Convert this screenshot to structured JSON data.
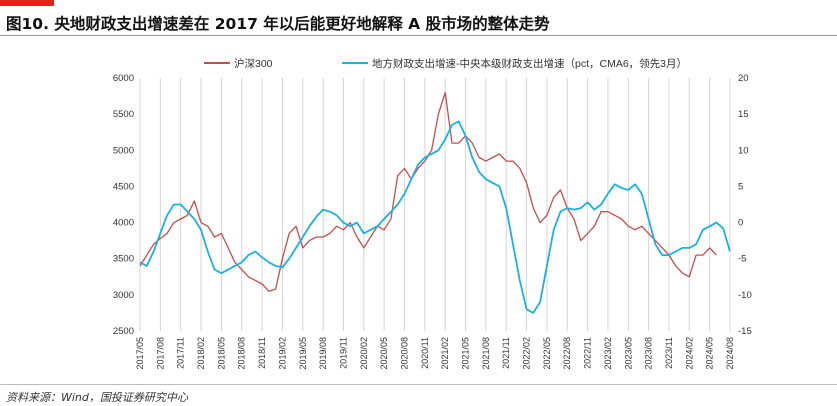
{
  "header": {
    "title": "图10. 央地财政支出增速差在 2017 年以后能更好地解释 A 股市场的整体走势"
  },
  "footer": {
    "source": "资料来源：Wind，国投证券研究中心"
  },
  "colors": {
    "accent": "#e2231a",
    "hs300": "#c0504d",
    "fiscal": "#1cb0e0"
  },
  "chart_data": {
    "type": "line",
    "legend_position": "top",
    "grid": {
      "vertical": true,
      "horizontal": false
    },
    "x_ticks": [
      "2017/05",
      "2017/08",
      "2017/11",
      "2018/02",
      "2018/05",
      "2018/08",
      "2018/11",
      "2019/02",
      "2019/05",
      "2019/08",
      "2019/11",
      "2020/02",
      "2020/05",
      "2020/08",
      "2020/11",
      "2021/02",
      "2021/05",
      "2021/08",
      "2021/11",
      "2022/02",
      "2022/05",
      "2022/08",
      "2022/11",
      "2023/02",
      "2023/05",
      "2023/08",
      "2023/11",
      "2024/02",
      "2024/05",
      "2024/08"
    ],
    "y_left": {
      "ticks": [
        2500,
        3000,
        3500,
        4000,
        4500,
        5000,
        5500,
        6000
      ],
      "range": [
        2500,
        6000
      ]
    },
    "y_right": {
      "ticks": [
        -15,
        -10,
        -5,
        0,
        5,
        10,
        15,
        20
      ],
      "range": [
        -15,
        20
      ]
    },
    "series": [
      {
        "name": "沪深300",
        "axis": "left",
        "x": [
          "2017/05",
          "2017/06",
          "2017/07",
          "2017/08",
          "2017/09",
          "2017/10",
          "2017/11",
          "2017/12",
          "2018/01",
          "2018/02",
          "2018/03",
          "2018/04",
          "2018/05",
          "2018/06",
          "2018/07",
          "2018/08",
          "2018/09",
          "2018/10",
          "2018/11",
          "2018/12",
          "2019/01",
          "2019/02",
          "2019/03",
          "2019/04",
          "2019/05",
          "2019/06",
          "2019/07",
          "2019/08",
          "2019/09",
          "2019/10",
          "2019/11",
          "2019/12",
          "2020/01",
          "2020/02",
          "2020/03",
          "2020/04",
          "2020/05",
          "2020/06",
          "2020/07",
          "2020/08",
          "2020/09",
          "2020/10",
          "2020/11",
          "2020/12",
          "2021/01",
          "2021/02",
          "2021/03",
          "2021/04",
          "2021/05",
          "2021/06",
          "2021/07",
          "2021/08",
          "2021/09",
          "2021/10",
          "2021/11",
          "2021/12",
          "2022/01",
          "2022/02",
          "2022/03",
          "2022/04",
          "2022/05",
          "2022/06",
          "2022/07",
          "2022/08",
          "2022/09",
          "2022/10",
          "2022/11",
          "2022/12",
          "2023/01",
          "2023/02",
          "2023/03",
          "2023/04",
          "2023/05",
          "2023/06",
          "2023/07",
          "2023/08",
          "2023/09",
          "2023/10",
          "2023/11",
          "2023/12",
          "2024/01",
          "2024/02",
          "2024/03",
          "2024/04",
          "2024/05",
          "2024/06"
        ],
        "values": [
          3400,
          3550,
          3700,
          3780,
          3850,
          4000,
          4050,
          4100,
          4300,
          4000,
          3950,
          3800,
          3850,
          3650,
          3450,
          3350,
          3250,
          3200,
          3150,
          3050,
          3080,
          3500,
          3850,
          3950,
          3650,
          3750,
          3800,
          3800,
          3850,
          3950,
          3900,
          4000,
          3800,
          3650,
          3800,
          3950,
          3900,
          4050,
          4650,
          4750,
          4600,
          4750,
          4850,
          5000,
          5500,
          5800,
          5100,
          5100,
          5200,
          5100,
          4900,
          4850,
          4900,
          4950,
          4850,
          4850,
          4750,
          4550,
          4200,
          4000,
          4100,
          4350,
          4450,
          4200,
          4050,
          3750,
          3850,
          3950,
          4150,
          4150,
          4100,
          4050,
          3950,
          3900,
          3950,
          3850,
          3750,
          3650,
          3550,
          3400,
          3300,
          3250,
          3550,
          3550,
          3650,
          3550
        ]
      },
      {
        "name": "地方财政支出增速-中央本级财政支出增速（pct，CMA6，领先3月）",
        "axis": "right",
        "x": [
          "2017/05",
          "2017/06",
          "2017/07",
          "2017/08",
          "2017/09",
          "2017/10",
          "2017/11",
          "2017/12",
          "2018/01",
          "2018/02",
          "2018/03",
          "2018/04",
          "2018/05",
          "2018/06",
          "2018/07",
          "2018/08",
          "2018/09",
          "2018/10",
          "2018/11",
          "2018/12",
          "2019/01",
          "2019/02",
          "2019/03",
          "2019/04",
          "2019/05",
          "2019/06",
          "2019/07",
          "2019/08",
          "2019/09",
          "2019/10",
          "2019/11",
          "2019/12",
          "2020/01",
          "2020/02",
          "2020/03",
          "2020/04",
          "2020/05",
          "2020/06",
          "2020/07",
          "2020/08",
          "2020/09",
          "2020/10",
          "2020/11",
          "2020/12",
          "2021/01",
          "2021/02",
          "2021/03",
          "2021/04",
          "2021/05",
          "2021/06",
          "2021/07",
          "2021/08",
          "2021/09",
          "2021/10",
          "2021/11",
          "2021/12",
          "2022/01",
          "2022/02",
          "2022/03",
          "2022/04",
          "2022/05",
          "2022/06",
          "2022/07",
          "2022/08",
          "2022/09",
          "2022/10",
          "2022/11",
          "2022/12",
          "2023/01",
          "2023/02",
          "2023/03",
          "2023/04",
          "2023/05",
          "2023/06",
          "2023/07",
          "2023/08",
          "2023/09",
          "2023/10",
          "2023/11",
          "2023/12",
          "2024/01",
          "2024/02",
          "2024/03",
          "2024/04",
          "2024/05",
          "2024/06",
          "2024/07",
          "2024/08"
        ],
        "values": [
          -5.5,
          -6.0,
          -4.0,
          -1.5,
          1.0,
          2.5,
          2.5,
          1.5,
          0.5,
          -1.0,
          -4.0,
          -6.5,
          -7.0,
          -6.5,
          -6.0,
          -5.5,
          -4.5,
          -4.0,
          -4.8,
          -5.5,
          -6.0,
          -6.2,
          -5.0,
          -3.5,
          -2.0,
          -0.5,
          0.8,
          1.8,
          1.5,
          1.0,
          0.0,
          -0.5,
          0.0,
          -1.5,
          -1.0,
          -0.5,
          0.5,
          1.5,
          2.5,
          4.0,
          6.0,
          8.0,
          9.0,
          9.5,
          10.0,
          11.5,
          13.5,
          14.0,
          12.0,
          9.0,
          7.0,
          6.0,
          5.5,
          5.0,
          2.0,
          -3.0,
          -8.0,
          -12.0,
          -12.5,
          -11.0,
          -6.0,
          -1.0,
          1.5,
          2.0,
          1.8,
          2.0,
          2.8,
          1.8,
          2.5,
          4.0,
          5.3,
          4.8,
          4.5,
          5.3,
          4.0,
          0.5,
          -3.0,
          -4.5,
          -4.5,
          -4.0,
          -3.5,
          -3.5,
          -3.0,
          -1.0,
          -0.5,
          0.0,
          -0.8,
          -4.0
        ]
      }
    ]
  }
}
